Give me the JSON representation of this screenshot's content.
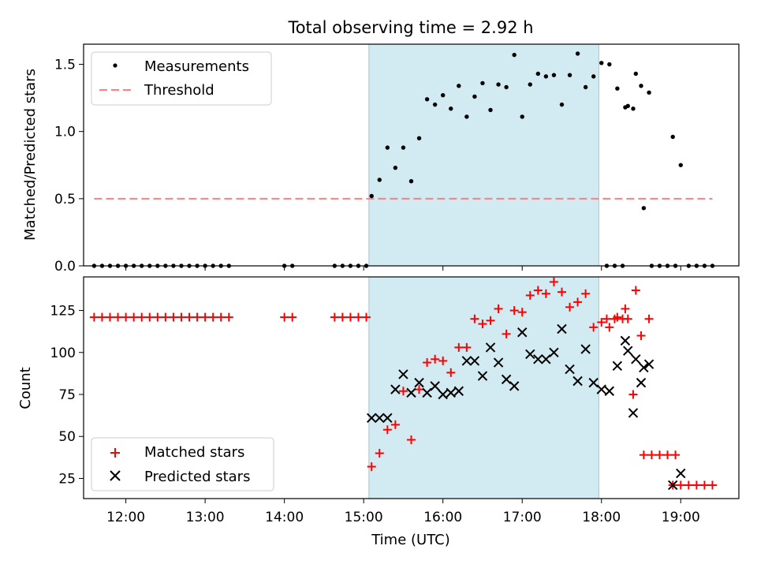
{
  "chart_data": [
    {
      "type": "scatter",
      "title": "Total observing time = 2.92 h",
      "ylabel": "Matched/Predicted stars",
      "xlabel": "",
      "xlim": [
        "11:28",
        "19:44"
      ],
      "ylim": [
        0,
        1.65
      ],
      "yticks": [
        "0.0",
        "0.5",
        "1.0",
        "1.5"
      ],
      "grid": false,
      "legend_position": "upper-left",
      "shaded_interval": {
        "start": "15:04",
        "end": "17:58",
        "color": "#add8e6"
      },
      "threshold": {
        "name": "Threshold",
        "value": 0.5,
        "x_start": "11:36",
        "x_end": "19:24",
        "color": "#ff7f7f"
      },
      "series": [
        {
          "name": "Measurements",
          "color": "#000000",
          "marker": "dot",
          "points": [
            [
              "11:36",
              0
            ],
            [
              "11:42",
              0
            ],
            [
              "11:48",
              0
            ],
            [
              "11:54",
              0
            ],
            [
              "12:00",
              0
            ],
            [
              "12:06",
              0
            ],
            [
              "12:12",
              0
            ],
            [
              "12:18",
              0
            ],
            [
              "12:24",
              0
            ],
            [
              "12:30",
              0
            ],
            [
              "12:36",
              0
            ],
            [
              "12:42",
              0
            ],
            [
              "12:48",
              0
            ],
            [
              "12:54",
              0
            ],
            [
              "13:00",
              0
            ],
            [
              "13:06",
              0
            ],
            [
              "13:12",
              0
            ],
            [
              "13:18",
              0
            ],
            [
              "14:00",
              0
            ],
            [
              "14:06",
              0
            ],
            [
              "14:38",
              0
            ],
            [
              "14:44",
              0
            ],
            [
              "14:50",
              0
            ],
            [
              "14:56",
              0
            ],
            [
              "15:02",
              0
            ],
            [
              "15:06",
              0.52
            ],
            [
              "15:12",
              0.64
            ],
            [
              "15:18",
              0.88
            ],
            [
              "15:24",
              0.73
            ],
            [
              "15:30",
              0.88
            ],
            [
              "15:36",
              0.63
            ],
            [
              "15:42",
              0.95
            ],
            [
              "15:48",
              1.24
            ],
            [
              "15:54",
              1.2
            ],
            [
              "16:00",
              1.27
            ],
            [
              "16:06",
              1.17
            ],
            [
              "16:12",
              1.34
            ],
            [
              "16:18",
              1.11
            ],
            [
              "16:24",
              1.26
            ],
            [
              "16:30",
              1.36
            ],
            [
              "16:36",
              1.16
            ],
            [
              "16:42",
              1.35
            ],
            [
              "16:48",
              1.33
            ],
            [
              "16:54",
              1.57
            ],
            [
              "17:00",
              1.11
            ],
            [
              "17:06",
              1.35
            ],
            [
              "17:12",
              1.43
            ],
            [
              "17:18",
              1.41
            ],
            [
              "17:24",
              1.42
            ],
            [
              "17:30",
              1.2
            ],
            [
              "17:36",
              1.42
            ],
            [
              "17:42",
              1.58
            ],
            [
              "17:48",
              1.33
            ],
            [
              "17:54",
              1.41
            ],
            [
              "18:00",
              1.51
            ],
            [
              "18:06",
              1.5
            ],
            [
              "18:12",
              1.32
            ],
            [
              "18:18",
              1.18
            ],
            [
              "18:24",
              1.17
            ],
            [
              "18:30",
              1.34
            ],
            [
              "18:36",
              1.29
            ],
            [
              "18:04",
              0
            ],
            [
              "18:10",
              0
            ],
            [
              "18:16",
              0
            ],
            [
              "18:20",
              1.19
            ],
            [
              "18:26",
              1.43
            ],
            [
              "18:32",
              0.43
            ],
            [
              "18:38",
              0
            ],
            [
              "18:44",
              0
            ],
            [
              "18:50",
              0
            ],
            [
              "18:56",
              0
            ],
            [
              "18:54",
              0.96
            ],
            [
              "19:00",
              0.75
            ],
            [
              "19:06",
              0
            ],
            [
              "19:12",
              0
            ],
            [
              "19:18",
              0
            ],
            [
              "19:24",
              0
            ]
          ]
        }
      ]
    },
    {
      "type": "scatter",
      "title": "",
      "xlabel": "Time (UTC)",
      "ylabel": "Count",
      "xlim": [
        "11:28",
        "19:44"
      ],
      "ylim": [
        13,
        145
      ],
      "xticks": [
        "12:00",
        "13:00",
        "14:00",
        "15:00",
        "16:00",
        "17:00",
        "18:00",
        "19:00"
      ],
      "yticks": [
        "25",
        "50",
        "75",
        "100",
        "125"
      ],
      "grid": false,
      "legend_position": "lower-left",
      "shaded_interval": {
        "start": "15:04",
        "end": "17:58",
        "color": "#add8e6"
      },
      "series": [
        {
          "name": "Matched stars",
          "color": "#ff0000",
          "marker": "plus",
          "points": [
            [
              "11:36",
              121
            ],
            [
              "11:42",
              121
            ],
            [
              "11:48",
              121
            ],
            [
              "11:54",
              121
            ],
            [
              "12:00",
              121
            ],
            [
              "12:06",
              121
            ],
            [
              "12:12",
              121
            ],
            [
              "12:18",
              121
            ],
            [
              "12:24",
              121
            ],
            [
              "12:30",
              121
            ],
            [
              "12:36",
              121
            ],
            [
              "12:42",
              121
            ],
            [
              "12:48",
              121
            ],
            [
              "12:54",
              121
            ],
            [
              "13:00",
              121
            ],
            [
              "13:06",
              121
            ],
            [
              "13:12",
              121
            ],
            [
              "13:18",
              121
            ],
            [
              "14:00",
              121
            ],
            [
              "14:06",
              121
            ],
            [
              "14:38",
              121
            ],
            [
              "14:44",
              121
            ],
            [
              "14:50",
              121
            ],
            [
              "14:56",
              121
            ],
            [
              "15:02",
              121
            ],
            [
              "15:06",
              32
            ],
            [
              "15:12",
              40
            ],
            [
              "15:18",
              54
            ],
            [
              "15:24",
              57
            ],
            [
              "15:30",
              77
            ],
            [
              "15:36",
              48
            ],
            [
              "15:42",
              78
            ],
            [
              "15:48",
              94
            ],
            [
              "15:54",
              96
            ],
            [
              "16:00",
              95
            ],
            [
              "16:06",
              88
            ],
            [
              "16:12",
              103
            ],
            [
              "16:18",
              103
            ],
            [
              "16:24",
              120
            ],
            [
              "16:30",
              117
            ],
            [
              "16:36",
              119
            ],
            [
              "16:42",
              126
            ],
            [
              "16:48",
              111
            ],
            [
              "16:54",
              125
            ],
            [
              "17:00",
              124
            ],
            [
              "17:06",
              134
            ],
            [
              "17:12",
              137
            ],
            [
              "17:18",
              135
            ],
            [
              "17:24",
              142
            ],
            [
              "17:30",
              136
            ],
            [
              "17:36",
              127
            ],
            [
              "17:42",
              130
            ],
            [
              "17:48",
              135
            ],
            [
              "17:54",
              115
            ],
            [
              "18:00",
              118
            ],
            [
              "18:06",
              115
            ],
            [
              "18:12",
              121
            ],
            [
              "18:18",
              126
            ],
            [
              "18:24",
              75
            ],
            [
              "18:30",
              110
            ],
            [
              "18:36",
              120
            ],
            [
              "18:04",
              120
            ],
            [
              "18:10",
              120
            ],
            [
              "18:16",
              120
            ],
            [
              "18:20",
              120
            ],
            [
              "18:26",
              137
            ],
            [
              "18:32",
              39
            ],
            [
              "18:38",
              39
            ],
            [
              "18:44",
              39
            ],
            [
              "18:50",
              39
            ],
            [
              "18:56",
              39
            ],
            [
              "18:54",
              21
            ],
            [
              "19:00",
              21
            ],
            [
              "19:06",
              21
            ],
            [
              "19:12",
              21
            ],
            [
              "19:18",
              21
            ],
            [
              "19:24",
              21
            ]
          ]
        },
        {
          "name": "Predicted stars",
          "color": "#000000",
          "marker": "x",
          "points": [
            [
              "15:06",
              61
            ],
            [
              "15:12",
              61
            ],
            [
              "15:18",
              61
            ],
            [
              "15:24",
              78
            ],
            [
              "15:30",
              87
            ],
            [
              "15:36",
              76
            ],
            [
              "15:42",
              82
            ],
            [
              "15:48",
              76
            ],
            [
              "15:54",
              80
            ],
            [
              "16:00",
              75
            ],
            [
              "16:06",
              76
            ],
            [
              "16:12",
              77
            ],
            [
              "16:18",
              95
            ],
            [
              "16:24",
              95
            ],
            [
              "16:30",
              86
            ],
            [
              "16:36",
              103
            ],
            [
              "16:42",
              94
            ],
            [
              "16:48",
              84
            ],
            [
              "16:54",
              80
            ],
            [
              "17:00",
              112
            ],
            [
              "17:06",
              99
            ],
            [
              "17:12",
              96
            ],
            [
              "17:18",
              96
            ],
            [
              "17:24",
              100
            ],
            [
              "17:30",
              114
            ],
            [
              "17:36",
              90
            ],
            [
              "17:42",
              83
            ],
            [
              "17:48",
              102
            ],
            [
              "17:54",
              82
            ],
            [
              "18:00",
              78
            ],
            [
              "18:06",
              77
            ],
            [
              "18:12",
              92
            ],
            [
              "18:18",
              107
            ],
            [
              "18:24",
              64
            ],
            [
              "18:30",
              82
            ],
            [
              "18:36",
              93
            ],
            [
              "18:20",
              101
            ],
            [
              "18:26",
              96
            ],
            [
              "18:32",
              91
            ],
            [
              "18:54",
              21
            ],
            [
              "19:00",
              28
            ]
          ]
        }
      ]
    }
  ]
}
